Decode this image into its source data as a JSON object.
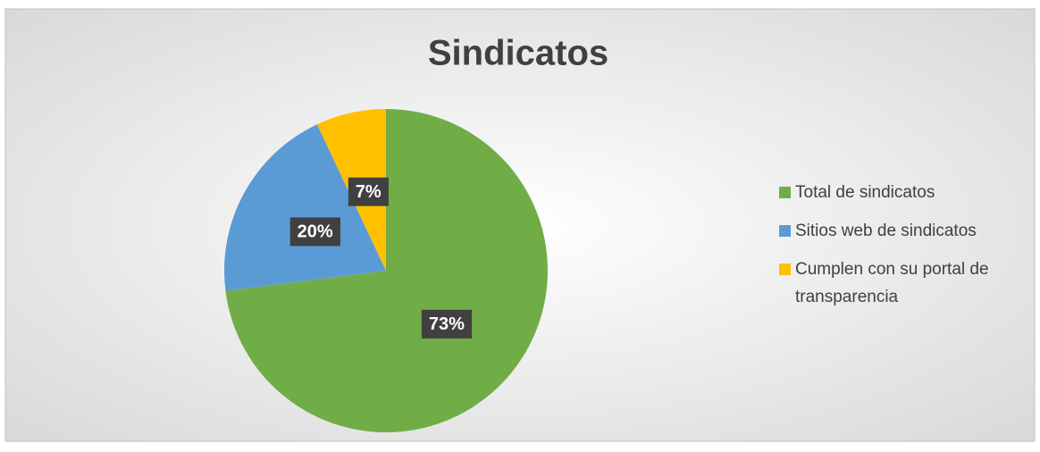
{
  "chart_data": {
    "type": "pie",
    "title": "Sindicatos",
    "categories": [
      "Total de sindicatos",
      "Sitios web de sindicatos",
      "Cumplen con su portal de transparencia"
    ],
    "values": [
      73,
      20,
      7
    ],
    "value_labels": [
      "73%",
      "20%",
      "7%"
    ],
    "colors": [
      "#70ad47",
      "#5b9bd5",
      "#ffc000"
    ],
    "legend": "right"
  }
}
